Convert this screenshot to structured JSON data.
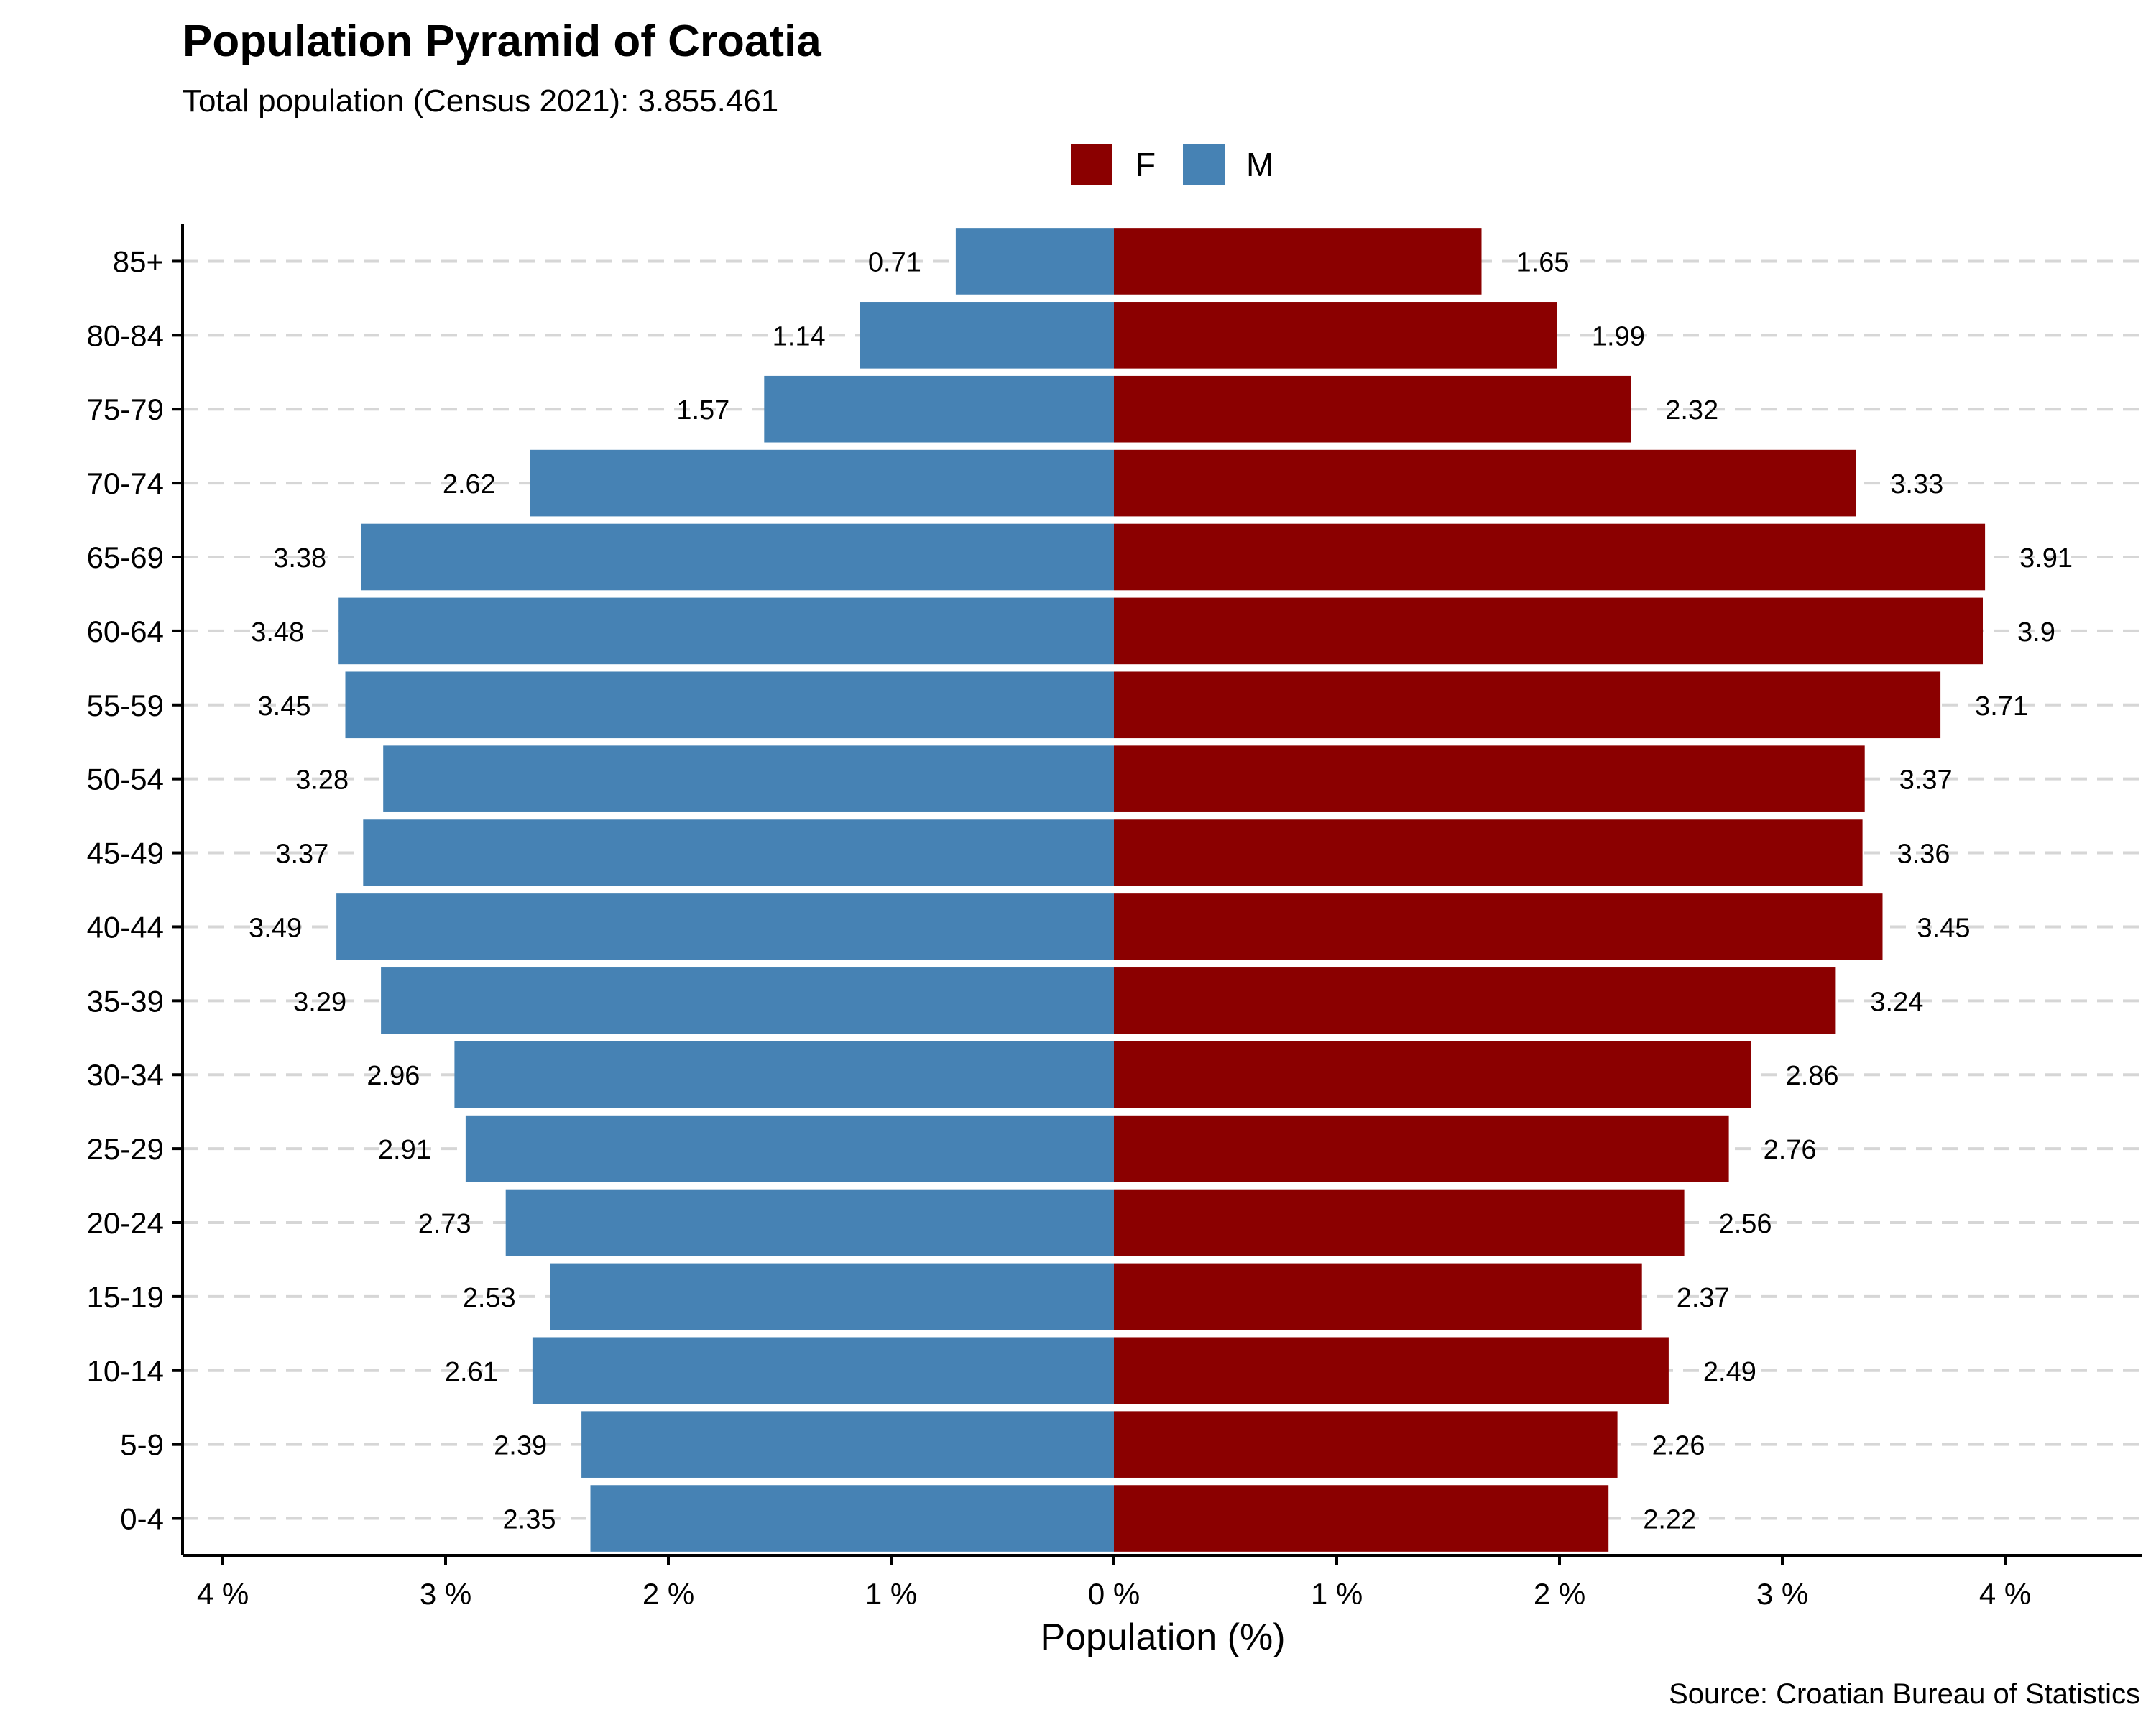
{
  "chart_data": {
    "type": "bar",
    "orientation": "horizontal",
    "subtype": "population-pyramid",
    "title": "Population Pyramid of Croatia",
    "subtitle": "Total population (Census 2021): 3.855.461",
    "caption": "Source: Croatian Bureau of Statistics",
    "xlabel": "Population (%)",
    "ylabel": "",
    "categories": [
      "0-4",
      "5-9",
      "10-14",
      "15-19",
      "20-24",
      "25-29",
      "30-34",
      "35-39",
      "40-44",
      "45-49",
      "50-54",
      "55-59",
      "60-64",
      "65-69",
      "70-74",
      "75-79",
      "80-84",
      "85+"
    ],
    "series": [
      {
        "name": "F",
        "side": "right",
        "color": "#8B0000",
        "values": [
          2.22,
          2.26,
          2.49,
          2.37,
          2.56,
          2.76,
          2.86,
          3.24,
          3.45,
          3.36,
          3.37,
          3.71,
          3.9,
          3.91,
          3.33,
          2.32,
          1.99,
          1.65
        ]
      },
      {
        "name": "M",
        "side": "left",
        "color": "#4682B4",
        "values": [
          2.35,
          2.39,
          2.61,
          2.53,
          2.73,
          2.91,
          2.96,
          3.29,
          3.49,
          3.37,
          3.28,
          3.45,
          3.48,
          3.38,
          2.62,
          1.57,
          1.14,
          0.71
        ]
      }
    ],
    "xlim": [
      -4.4,
      4.6
    ],
    "xticks": [
      -4,
      -3,
      -2,
      -1,
      0,
      1,
      2,
      3,
      4
    ],
    "xtick_labels": [
      "4 %",
      "3 %",
      "2 %",
      "1 %",
      "0 %",
      "1 %",
      "2 %",
      "3 %",
      "4 %"
    ],
    "grid": "horizontal dashed",
    "legend_position": "top-center"
  }
}
